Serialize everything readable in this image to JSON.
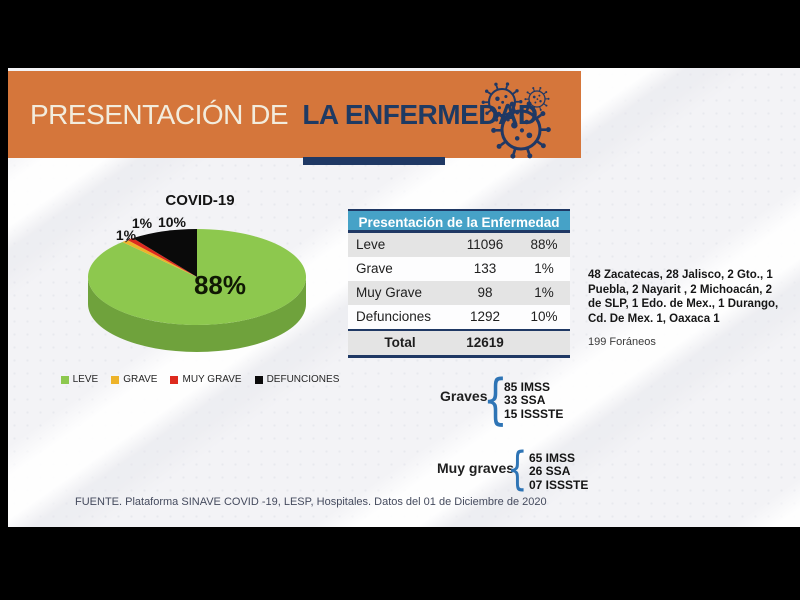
{
  "header": {
    "title_light": "PRESENTACIÓN DE",
    "title_bold": "LA ENFERMEDAD"
  },
  "chart_data": {
    "type": "pie",
    "style": "3d-pie",
    "title": "COVID-19",
    "labels": [
      "LEVE",
      "GRAVE",
      "MUY GRAVE",
      "DEFUNCIONES"
    ],
    "values": [
      88,
      1,
      1,
      10
    ],
    "data_labels": [
      "88%",
      "1%",
      "1%",
      "10%"
    ],
    "colors": [
      "#8dc84e",
      "#edb32a",
      "#dd2a1e",
      "#0a0a0a"
    ],
    "side_color": "#6fa23c",
    "legend_position": "bottom"
  },
  "table": {
    "header": "Presentación de la Enfermedad",
    "rows": [
      {
        "label": "Leve",
        "value": "11096",
        "pct": "88%"
      },
      {
        "label": "Grave",
        "value": "133",
        "pct": "1%"
      },
      {
        "label": "Muy Grave",
        "value": "98",
        "pct": "1%"
      },
      {
        "label": "Defunciones",
        "value": "1292",
        "pct": "10%"
      }
    ],
    "total": {
      "label": "Total",
      "value": "12619"
    }
  },
  "notes": {
    "states_breakdown": "48 Zacatecas, 28 Jalisco, 2 Gto., 1 Puebla, 2 Nayarit , 2 Michoacán, 2 de SLP, 1 Edo. de Mex., 1 Durango, Cd. De Mex. 1, Oaxaca 1",
    "foraneos": "199 Foráneos"
  },
  "graves": {
    "label": "Graves",
    "items": [
      "85 IMSS",
      "33 SSA",
      "15 ISSSTE"
    ]
  },
  "muy_graves": {
    "label": "Muy graves",
    "items": [
      "65 IMSS",
      "26 SSA",
      "07 ISSSTE"
    ]
  },
  "footer": {
    "source": "FUENTE. Plataforma SINAVE COVID -19, LESP, Hospitales. Datos del 01 de Diciembre de 2020"
  },
  "colors": {
    "banner_orange": "#d5763b",
    "navy": "#1f3864",
    "table_header_blue": "#46a2c7",
    "brace_blue": "#2e74b5",
    "virus_icon_navy": "#203864"
  }
}
